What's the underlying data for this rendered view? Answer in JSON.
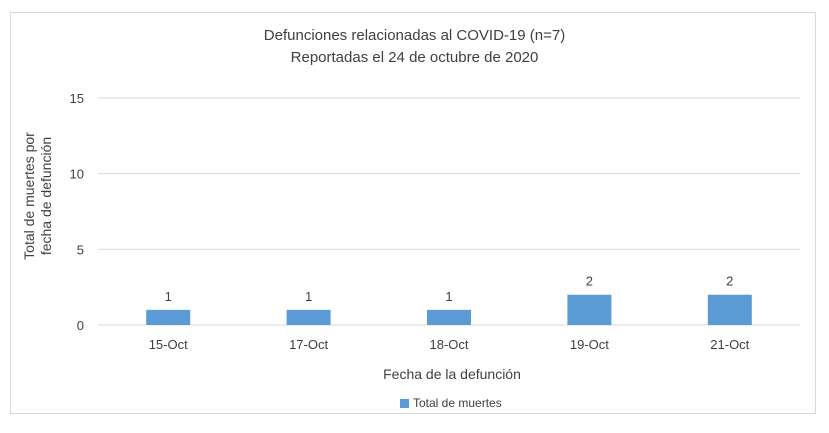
{
  "chart_data": {
    "type": "bar",
    "title": "Defunciones relacionadas al COVID-19 (n=7)",
    "subtitle": "Reportadas el 24 de octubre de 2020",
    "xlabel": "Fecha de la defunción",
    "ylabel_line1": "Total de muertes  por",
    "ylabel_line2": "fecha de defunción",
    "categories": [
      "15-Oct",
      "17-Oct",
      "18-Oct",
      "19-Oct",
      "21-Oct"
    ],
    "series": [
      {
        "name": "Total de muertes",
        "values": [
          1,
          1,
          1,
          2,
          2
        ]
      }
    ],
    "ylim": [
      0,
      15
    ],
    "yticks": [
      "0",
      "5",
      "10",
      "15"
    ],
    "data_labels": true,
    "grid": true,
    "legend": "bottom",
    "colors": {
      "bar": "#5b9bd5",
      "grid": "#d9d9d9",
      "text": "#404040"
    }
  }
}
